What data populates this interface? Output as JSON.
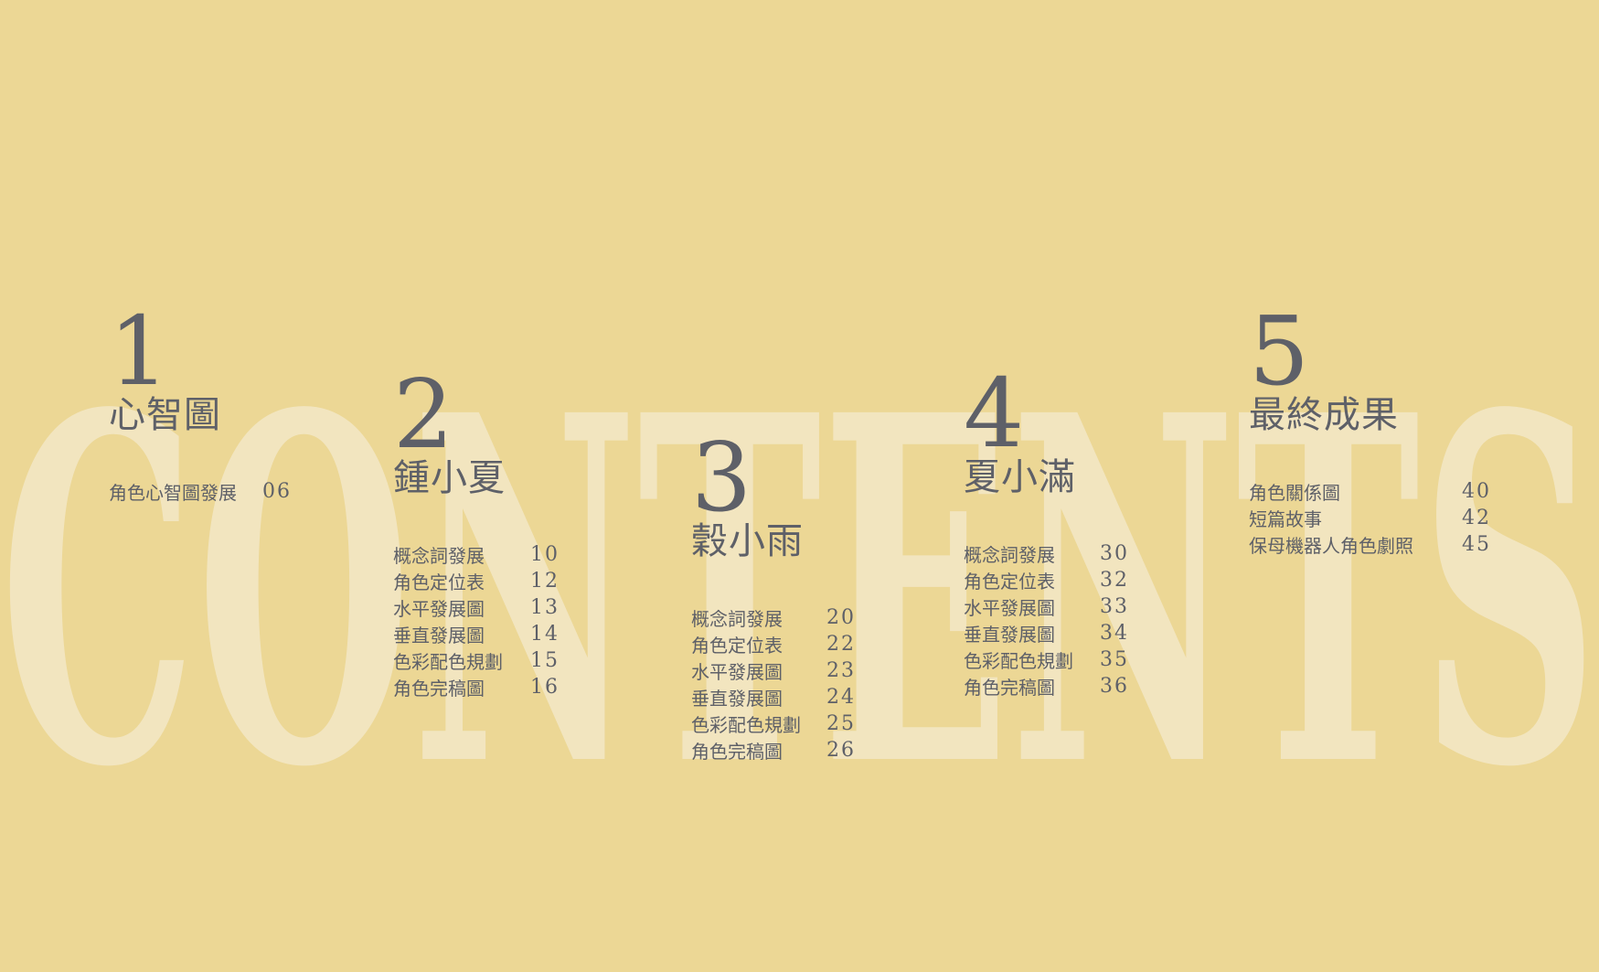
{
  "background_word": "CONTENTS",
  "colors": {
    "background": "#ecd795",
    "background_word": "#f2e5bf",
    "text": "#5e6068"
  },
  "sections": [
    {
      "number": "1",
      "title": "心智圖",
      "items": [
        {
          "label": "角色心智圖發展",
          "page": "06"
        }
      ]
    },
    {
      "number": "2",
      "title": "鍾小夏",
      "items": [
        {
          "label": "概念詞發展",
          "page": "10"
        },
        {
          "label": "角色定位表",
          "page": "12"
        },
        {
          "label": "水平發展圖",
          "page": "13"
        },
        {
          "label": "垂直發展圖",
          "page": "14"
        },
        {
          "label": "色彩配色規劃",
          "page": "15"
        },
        {
          "label": "角色完稿圖",
          "page": "16"
        }
      ]
    },
    {
      "number": "3",
      "title": "穀小雨",
      "items": [
        {
          "label": "概念詞發展",
          "page": "20"
        },
        {
          "label": "角色定位表",
          "page": "22"
        },
        {
          "label": "水平發展圖",
          "page": "23"
        },
        {
          "label": "垂直發展圖",
          "page": "24"
        },
        {
          "label": "色彩配色規劃",
          "page": "25"
        },
        {
          "label": "角色完稿圖",
          "page": "26"
        }
      ]
    },
    {
      "number": "4",
      "title": "夏小滿",
      "items": [
        {
          "label": "概念詞發展",
          "page": "30"
        },
        {
          "label": "角色定位表",
          "page": "32"
        },
        {
          "label": "水平發展圖",
          "page": "33"
        },
        {
          "label": "垂直發展圖",
          "page": "34"
        },
        {
          "label": "色彩配色規劃",
          "page": "35"
        },
        {
          "label": "角色完稿圖",
          "page": "36"
        }
      ]
    },
    {
      "number": "5",
      "title": "最終成果",
      "items": [
        {
          "label": "角色關係圖",
          "page": "40"
        },
        {
          "label": "短篇故事",
          "page": "42"
        },
        {
          "label": "保母機器人角色劇照",
          "page": "45"
        }
      ]
    }
  ]
}
